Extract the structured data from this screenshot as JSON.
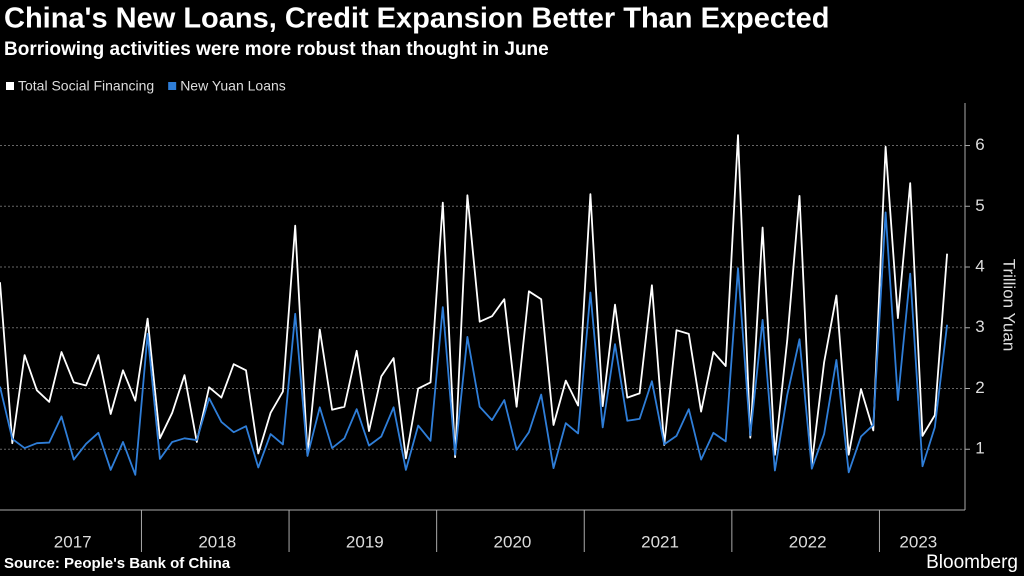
{
  "chart_data": {
    "type": "line",
    "title": "China's New Loans, Credit Expansion Better Than Expected",
    "subtitle": "Borriowing activities were more robust than thought in June",
    "y_label": "Trillion Yuan",
    "source": "Source: People's Bank of China",
    "brand": "Bloomberg",
    "years": [
      "2017",
      "2018",
      "2019",
      "2020",
      "2021",
      "2022",
      "2023"
    ],
    "ylim": [
      0,
      6.7
    ],
    "yticks": [
      1,
      2,
      3,
      4,
      5,
      6
    ],
    "grid": true,
    "legend": "top-left",
    "series": [
      {
        "name": "Total Social Financing",
        "color": "#ffffff",
        "values": [
          3.75,
          1.1,
          2.55,
          1.97,
          1.78,
          2.6,
          2.1,
          2.05,
          2.55,
          1.58,
          2.3,
          1.8,
          3.15,
          1.18,
          1.6,
          2.22,
          1.12,
          2.02,
          1.85,
          2.4,
          2.3,
          0.93,
          1.6,
          1.95,
          4.68,
          0.9,
          2.97,
          1.65,
          1.7,
          2.62,
          1.3,
          2.2,
          2.5,
          0.85,
          2.0,
          2.1,
          5.06,
          0.87,
          5.18,
          3.1,
          3.19,
          3.47,
          1.7,
          3.6,
          3.47,
          1.4,
          2.13,
          1.72,
          5.2,
          1.71,
          3.38,
          1.85,
          1.92,
          3.7,
          1.07,
          2.96,
          2.9,
          1.62,
          2.6,
          2.37,
          6.17,
          1.19,
          4.65,
          0.91,
          2.79,
          5.17,
          0.76,
          2.43,
          3.53,
          0.91,
          1.99,
          1.31,
          5.98,
          3.16,
          5.38,
          1.22,
          1.56,
          4.22
        ]
      },
      {
        "name": "New Yuan Loans",
        "color": "#2f7ed8",
        "values": [
          2.03,
          1.17,
          1.02,
          1.1,
          1.11,
          1.54,
          0.83,
          1.09,
          1.27,
          0.66,
          1.12,
          0.58,
          2.9,
          0.84,
          1.12,
          1.18,
          1.15,
          1.84,
          1.45,
          1.28,
          1.38,
          0.7,
          1.25,
          1.08,
          3.23,
          0.89,
          1.69,
          1.02,
          1.18,
          1.66,
          1.06,
          1.21,
          1.69,
          0.66,
          1.39,
          1.14,
          3.34,
          0.91,
          2.85,
          1.7,
          1.48,
          1.81,
          0.99,
          1.28,
          1.9,
          0.69,
          1.43,
          1.26,
          3.58,
          1.36,
          2.73,
          1.47,
          1.5,
          2.12,
          1.08,
          1.22,
          1.66,
          0.83,
          1.27,
          1.13,
          3.98,
          1.23,
          3.13,
          0.65,
          1.89,
          2.81,
          0.68,
          1.25,
          2.47,
          0.62,
          1.21,
          1.4,
          4.9,
          1.81,
          3.89,
          0.72,
          1.36,
          3.05
        ]
      }
    ]
  }
}
